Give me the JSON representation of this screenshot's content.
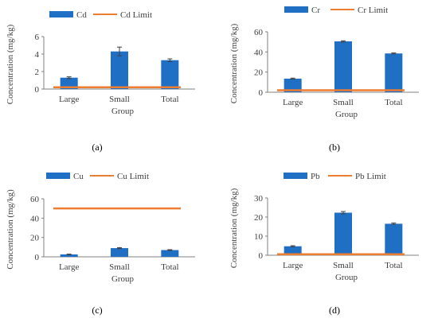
{
  "colors": {
    "bar": "#1f6fc5",
    "limit": "#ed7d31",
    "axis": "#808080",
    "errorbar": "#404040"
  },
  "chart_data": [
    {
      "type": "bar",
      "panel_label": "(a)",
      "legend_placement": "top-center",
      "series": [
        {
          "name": "Cd",
          "values": [
            1.3,
            4.3,
            3.3
          ],
          "errors": [
            0.1,
            0.5,
            0.15
          ]
        }
      ],
      "limit": {
        "name": "Cd Limit",
        "value": 0.2
      },
      "categories": [
        "Large",
        "Small",
        "Total"
      ],
      "xlabel": "Group",
      "ylabel": "Concentration (mg/kg)",
      "ylim": [
        0,
        6
      ],
      "yticks": [
        0,
        2,
        4,
        6
      ],
      "grid": false
    },
    {
      "type": "bar",
      "panel_label": "(b)",
      "legend_placement": "top-center",
      "series": [
        {
          "name": "Cr",
          "values": [
            13.5,
            50.5,
            38.5
          ],
          "errors": [
            0.5,
            0.6,
            0.5
          ]
        }
      ],
      "limit": {
        "name": "Cr Limit",
        "value": 2
      },
      "categories": [
        "Large",
        "Small",
        "Total"
      ],
      "xlabel": "Group",
      "ylabel": "Concentration (mg/kg)",
      "ylim": [
        0,
        60
      ],
      "yticks": [
        0,
        20,
        40,
        60
      ],
      "grid": false
    },
    {
      "type": "bar",
      "panel_label": "(c)",
      "legend_placement": "top-center",
      "series": [
        {
          "name": "Cu",
          "values": [
            2.5,
            9.0,
            7.0
          ],
          "errors": [
            0.3,
            0.5,
            0.4
          ]
        }
      ],
      "limit": {
        "name": "Cu Limit",
        "value": 50
      },
      "categories": [
        "Large",
        "Small",
        "Total"
      ],
      "xlabel": "Group",
      "ylabel": "Concentration (mg/kg)",
      "ylim": [
        0,
        60
      ],
      "yticks": [
        0,
        20,
        40,
        60
      ],
      "grid": false
    },
    {
      "type": "bar",
      "panel_label": "(d)",
      "legend_placement": "top-center",
      "series": [
        {
          "name": "Pb",
          "values": [
            4.7,
            22.3,
            16.5
          ],
          "errors": [
            0.3,
            0.6,
            0.4
          ]
        }
      ],
      "limit": {
        "name": "Pb Limit",
        "value": 0.5
      },
      "categories": [
        "Large",
        "Small",
        "Total"
      ],
      "xlabel": "Group",
      "ylabel": "Concentration (mg/kg)",
      "ylim": [
        0,
        30
      ],
      "yticks": [
        0,
        10,
        20,
        30
      ],
      "grid": false
    }
  ]
}
